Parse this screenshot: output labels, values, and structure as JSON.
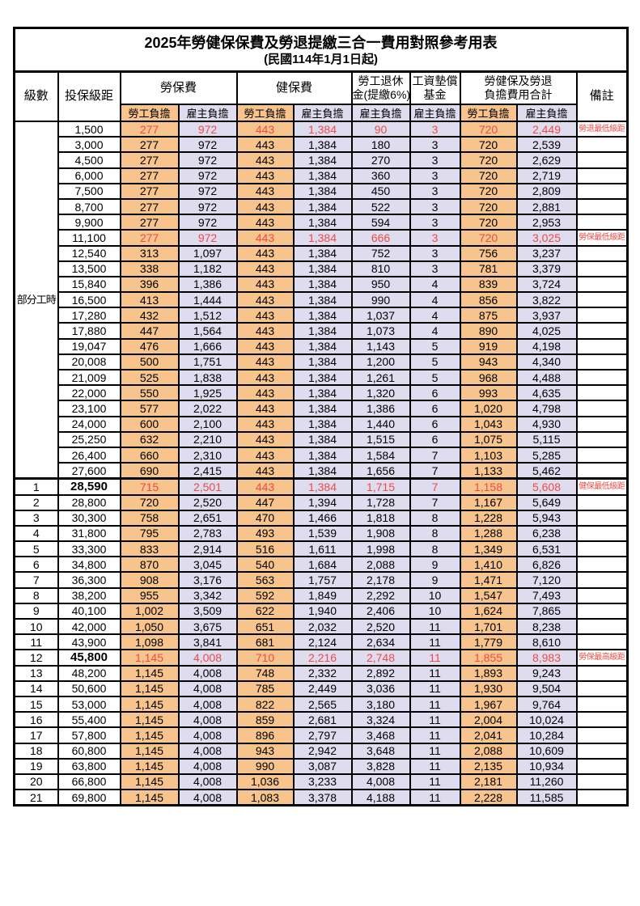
{
  "title": "2025年勞健保保費及勞退提繳三合一費用對照參考用表",
  "subtitle": "(民國114年1月1日起)",
  "colors": {
    "employee_bg": "#F6C48C",
    "employer_bg": "#DEDCEE",
    "highlight_red": "#EE4C44",
    "grid": "#000000"
  },
  "header": {
    "level": "級數",
    "bracket": "投保級距",
    "labor_fee": "勞保費",
    "health_fee": "健保費",
    "pension_line1": "勞工退休",
    "pension_line2": "金(提繳6%)",
    "wage_fund_line1": "工資墊償",
    "wage_fund_line2": "基金",
    "total_line1": "勞健保及勞退",
    "total_line2": "負擔費用合計",
    "remark": "備註",
    "employee_burden": "勞工負擔",
    "employer_burden": "雇主負擔"
  },
  "part_time_label": "部分工時",
  "part_time_rowspan": 23,
  "rows": [
    {
      "level": "",
      "bracket": "1,500",
      "fees": [
        "277",
        "972",
        "443",
        "1,384",
        "90",
        "3",
        "720",
        "2,449"
      ],
      "remark": "勞退最低級距",
      "red": true
    },
    {
      "level": "",
      "bracket": "3,000",
      "fees": [
        "277",
        "972",
        "443",
        "1,384",
        "180",
        "3",
        "720",
        "2,539"
      ],
      "remark": ""
    },
    {
      "level": "",
      "bracket": "4,500",
      "fees": [
        "277",
        "972",
        "443",
        "1,384",
        "270",
        "3",
        "720",
        "2,629"
      ],
      "remark": ""
    },
    {
      "level": "",
      "bracket": "6,000",
      "fees": [
        "277",
        "972",
        "443",
        "1,384",
        "360",
        "3",
        "720",
        "2,719"
      ],
      "remark": ""
    },
    {
      "level": "",
      "bracket": "7,500",
      "fees": [
        "277",
        "972",
        "443",
        "1,384",
        "450",
        "3",
        "720",
        "2,809"
      ],
      "remark": ""
    },
    {
      "level": "",
      "bracket": "8,700",
      "fees": [
        "277",
        "972",
        "443",
        "1,384",
        "522",
        "3",
        "720",
        "2,881"
      ],
      "remark": ""
    },
    {
      "level": "",
      "bracket": "9,900",
      "fees": [
        "277",
        "972",
        "443",
        "1,384",
        "594",
        "3",
        "720",
        "2,953"
      ],
      "remark": ""
    },
    {
      "level": "",
      "bracket": "11,100",
      "fees": [
        "277",
        "972",
        "443",
        "1,384",
        "666",
        "3",
        "720",
        "3,025"
      ],
      "remark": "勞保最低級距",
      "red": true
    },
    {
      "level": "",
      "bracket": "12,540",
      "fees": [
        "313",
        "1,097",
        "443",
        "1,384",
        "752",
        "3",
        "756",
        "3,237"
      ],
      "remark": ""
    },
    {
      "level": "",
      "bracket": "13,500",
      "fees": [
        "338",
        "1,182",
        "443",
        "1,384",
        "810",
        "3",
        "781",
        "3,379"
      ],
      "remark": ""
    },
    {
      "level": "",
      "bracket": "15,840",
      "fees": [
        "396",
        "1,386",
        "443",
        "1,384",
        "950",
        "4",
        "839",
        "3,724"
      ],
      "remark": ""
    },
    {
      "level": "",
      "bracket": "16,500",
      "fees": [
        "413",
        "1,444",
        "443",
        "1,384",
        "990",
        "4",
        "856",
        "3,822"
      ],
      "remark": ""
    },
    {
      "level": "",
      "bracket": "17,280",
      "fees": [
        "432",
        "1,512",
        "443",
        "1,384",
        "1,037",
        "4",
        "875",
        "3,937"
      ],
      "remark": ""
    },
    {
      "level": "",
      "bracket": "17,880",
      "fees": [
        "447",
        "1,564",
        "443",
        "1,384",
        "1,073",
        "4",
        "890",
        "4,025"
      ],
      "remark": ""
    },
    {
      "level": "",
      "bracket": "19,047",
      "fees": [
        "476",
        "1,666",
        "443",
        "1,384",
        "1,143",
        "5",
        "919",
        "4,198"
      ],
      "remark": ""
    },
    {
      "level": "",
      "bracket": "20,008",
      "fees": [
        "500",
        "1,751",
        "443",
        "1,384",
        "1,200",
        "5",
        "943",
        "4,340"
      ],
      "remark": ""
    },
    {
      "level": "",
      "bracket": "21,009",
      "fees": [
        "525",
        "1,838",
        "443",
        "1,384",
        "1,261",
        "5",
        "968",
        "4,488"
      ],
      "remark": ""
    },
    {
      "level": "",
      "bracket": "22,000",
      "fees": [
        "550",
        "1,925",
        "443",
        "1,384",
        "1,320",
        "6",
        "993",
        "4,635"
      ],
      "remark": ""
    },
    {
      "level": "",
      "bracket": "23,100",
      "fees": [
        "577",
        "2,022",
        "443",
        "1,384",
        "1,386",
        "6",
        "1,020",
        "4,798"
      ],
      "remark": ""
    },
    {
      "level": "",
      "bracket": "24,000",
      "fees": [
        "600",
        "2,100",
        "443",
        "1,384",
        "1,440",
        "6",
        "1,043",
        "4,930"
      ],
      "remark": ""
    },
    {
      "level": "",
      "bracket": "25,250",
      "fees": [
        "632",
        "2,210",
        "443",
        "1,384",
        "1,515",
        "6",
        "1,075",
        "5,115"
      ],
      "remark": ""
    },
    {
      "level": "",
      "bracket": "26,400",
      "fees": [
        "660",
        "2,310",
        "443",
        "1,384",
        "1,584",
        "7",
        "1,103",
        "5,285"
      ],
      "remark": ""
    },
    {
      "level": "",
      "bracket": "27,600",
      "fees": [
        "690",
        "2,415",
        "443",
        "1,384",
        "1,656",
        "7",
        "1,133",
        "5,462"
      ],
      "remark": ""
    },
    {
      "level": "1",
      "bracket": "28,590",
      "fees": [
        "715",
        "2,501",
        "443",
        "1,384",
        "1,715",
        "7",
        "1,158",
        "5,608"
      ],
      "remark": "健保最低級距",
      "red": true,
      "bold": true,
      "thick_top": true
    },
    {
      "level": "2",
      "bracket": "28,800",
      "fees": [
        "720",
        "2,520",
        "447",
        "1,394",
        "1,728",
        "7",
        "1,167",
        "5,649"
      ],
      "remark": ""
    },
    {
      "level": "3",
      "bracket": "30,300",
      "fees": [
        "758",
        "2,651",
        "470",
        "1,466",
        "1,818",
        "8",
        "1,228",
        "5,943"
      ],
      "remark": ""
    },
    {
      "level": "4",
      "bracket": "31,800",
      "fees": [
        "795",
        "2,783",
        "493",
        "1,539",
        "1,908",
        "8",
        "1,288",
        "6,238"
      ],
      "remark": ""
    },
    {
      "level": "5",
      "bracket": "33,300",
      "fees": [
        "833",
        "2,914",
        "516",
        "1,611",
        "1,998",
        "8",
        "1,349",
        "6,531"
      ],
      "remark": ""
    },
    {
      "level": "6",
      "bracket": "34,800",
      "fees": [
        "870",
        "3,045",
        "540",
        "1,684",
        "2,088",
        "9",
        "1,410",
        "6,826"
      ],
      "remark": ""
    },
    {
      "level": "7",
      "bracket": "36,300",
      "fees": [
        "908",
        "3,176",
        "563",
        "1,757",
        "2,178",
        "9",
        "1,471",
        "7,120"
      ],
      "remark": ""
    },
    {
      "level": "8",
      "bracket": "38,200",
      "fees": [
        "955",
        "3,342",
        "592",
        "1,849",
        "2,292",
        "10",
        "1,547",
        "7,493"
      ],
      "remark": ""
    },
    {
      "level": "9",
      "bracket": "40,100",
      "fees": [
        "1,002",
        "3,509",
        "622",
        "1,940",
        "2,406",
        "10",
        "1,624",
        "7,865"
      ],
      "remark": ""
    },
    {
      "level": "10",
      "bracket": "42,000",
      "fees": [
        "1,050",
        "3,675",
        "651",
        "2,032",
        "2,520",
        "11",
        "1,701",
        "8,238"
      ],
      "remark": ""
    },
    {
      "level": "11",
      "bracket": "43,900",
      "fees": [
        "1,098",
        "3,841",
        "681",
        "2,124",
        "2,634",
        "11",
        "1,779",
        "8,610"
      ],
      "remark": ""
    },
    {
      "level": "12",
      "bracket": "45,800",
      "fees": [
        "1,145",
        "4,008",
        "710",
        "2,216",
        "2,748",
        "11",
        "1,855",
        "8,983"
      ],
      "remark": "勞保最高級距",
      "red": true,
      "bold": true
    },
    {
      "level": "13",
      "bracket": "48,200",
      "fees": [
        "1,145",
        "4,008",
        "748",
        "2,332",
        "2,892",
        "11",
        "1,893",
        "9,243"
      ],
      "remark": ""
    },
    {
      "level": "14",
      "bracket": "50,600",
      "fees": [
        "1,145",
        "4,008",
        "785",
        "2,449",
        "3,036",
        "11",
        "1,930",
        "9,504"
      ],
      "remark": ""
    },
    {
      "level": "15",
      "bracket": "53,000",
      "fees": [
        "1,145",
        "4,008",
        "822",
        "2,565",
        "3,180",
        "11",
        "1,967",
        "9,764"
      ],
      "remark": ""
    },
    {
      "level": "16",
      "bracket": "55,400",
      "fees": [
        "1,145",
        "4,008",
        "859",
        "2,681",
        "3,324",
        "11",
        "2,004",
        "10,024"
      ],
      "remark": ""
    },
    {
      "level": "17",
      "bracket": "57,800",
      "fees": [
        "1,145",
        "4,008",
        "896",
        "2,797",
        "3,468",
        "11",
        "2,041",
        "10,284"
      ],
      "remark": ""
    },
    {
      "level": "18",
      "bracket": "60,800",
      "fees": [
        "1,145",
        "4,008",
        "943",
        "2,942",
        "3,648",
        "11",
        "2,088",
        "10,609"
      ],
      "remark": ""
    },
    {
      "level": "19",
      "bracket": "63,800",
      "fees": [
        "1,145",
        "4,008",
        "990",
        "3,087",
        "3,828",
        "11",
        "2,135",
        "10,934"
      ],
      "remark": ""
    },
    {
      "level": "20",
      "bracket": "66,800",
      "fees": [
        "1,145",
        "4,008",
        "1,036",
        "3,233",
        "4,008",
        "11",
        "2,181",
        "11,260"
      ],
      "remark": ""
    },
    {
      "level": "21",
      "bracket": "69,800",
      "fees": [
        "1,145",
        "4,008",
        "1,083",
        "3,378",
        "4,188",
        "11",
        "2,228",
        "11,585"
      ],
      "remark": ""
    }
  ],
  "fee_column_types": [
    "emp",
    "er",
    "emp",
    "er",
    "er",
    "er",
    "emp",
    "er"
  ]
}
